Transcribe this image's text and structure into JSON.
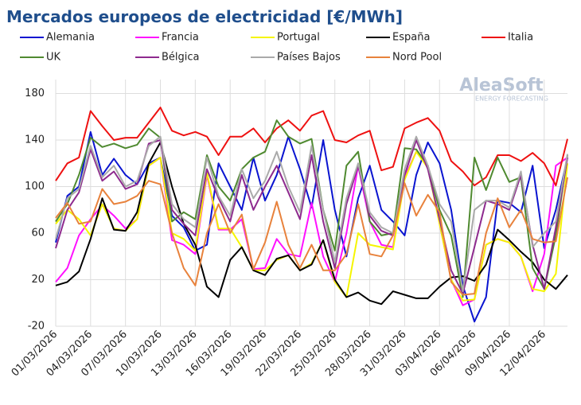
{
  "chart_data": {
    "type": "line",
    "title": "Mercados europeos de electricidad [€/MWh]",
    "watermark": {
      "brand": "AleaSoft",
      "tagline": "ENERGY FORECASTING"
    },
    "categories": [
      "01/03/2026",
      null,
      null,
      "04/03/2026",
      null,
      null,
      "07/03/2026",
      null,
      null,
      "10/03/2026",
      null,
      null,
      "13/03/2026",
      null,
      null,
      "16/03/2026",
      null,
      null,
      "19/03/2026",
      null,
      null,
      "22/03/2026",
      null,
      null,
      "25/03/2026",
      null,
      null,
      "28/03/2026",
      null,
      null,
      "31/03/2026",
      null,
      null,
      "03/04/2026",
      null,
      null,
      "06/04/2026",
      null,
      null,
      "09/04/2026",
      null,
      null,
      "12/04/2026",
      null,
      null
    ],
    "ylim": [
      -20,
      192
    ],
    "yticks": [
      -20,
      20,
      60,
      100,
      140,
      180
    ],
    "grid": true,
    "legend": "top",
    "series": [
      {
        "name": "Alemania",
        "color": "#0a14d0",
        "values": [
          52,
          92,
          100,
          147,
          110,
          124,
          110,
          102,
          120,
          125,
          75,
          65,
          45,
          50,
          120,
          100,
          80,
          125,
          88,
          110,
          143,
          115,
          82,
          140,
          80,
          40,
          90,
          118,
          80,
          70,
          58,
          110,
          138,
          120,
          80,
          15,
          -16,
          5,
          88,
          86,
          78,
          118,
          47,
          80,
          125
        ]
      },
      {
        "name": "Francia",
        "color": "#ff10ff",
        "values": [
          18,
          30,
          58,
          72,
          84,
          75,
          64,
          72,
          118,
          125,
          54,
          50,
          42,
          110,
          63,
          63,
          72,
          29,
          30,
          55,
          42,
          40,
          86,
          40,
          18,
          60,
          118,
          70,
          50,
          48,
          108,
          130,
          118,
          68,
          20,
          -2,
          3,
          50,
          55,
          52,
          40,
          10,
          42,
          118,
          125
        ]
      },
      {
        "name": "Portugal",
        "color": "#f5f500",
        "values": [
          68,
          80,
          72,
          58,
          85,
          64,
          62,
          72,
          118,
          125,
          60,
          55,
          45,
          112,
          64,
          64,
          48,
          28,
          28,
          37,
          41,
          28,
          34,
          54,
          18,
          5,
          60,
          50,
          48,
          46,
          106,
          130,
          116,
          68,
          20,
          2,
          3,
          50,
          55,
          52,
          40,
          12,
          10,
          25,
          120
        ]
      },
      {
        "name": "España",
        "color": "#000000",
        "values": [
          15,
          18,
          27,
          55,
          90,
          63,
          62,
          78,
          120,
          138,
          100,
          68,
          50,
          14,
          5,
          37,
          48,
          28,
          24,
          38,
          41,
          28,
          33,
          54,
          20,
          5,
          9,
          2,
          -1,
          10,
          7,
          4,
          4,
          14,
          22,
          23,
          19,
          33,
          63,
          54,
          44,
          35,
          20,
          12,
          24
        ]
      },
      {
        "name": "Italia",
        "color": "#ee1111",
        "values": [
          105,
          120,
          125,
          165,
          152,
          140,
          142,
          142,
          155,
          168,
          148,
          144,
          147,
          143,
          127,
          143,
          143,
          150,
          138,
          150,
          157,
          148,
          161,
          165,
          140,
          138,
          144,
          148,
          114,
          117,
          150,
          155,
          159,
          148,
          122,
          113,
          101,
          108,
          127,
          127,
          122,
          129,
          120,
          101,
          141
        ]
      },
      {
        "name": "UK",
        "color": "#4f8a30",
        "values": [
          70,
          85,
          110,
          142,
          134,
          137,
          133,
          136,
          150,
          142,
          70,
          78,
          72,
          127,
          100,
          88,
          115,
          125,
          130,
          157,
          143,
          137,
          141,
          80,
          45,
          118,
          130,
          70,
          58,
          60,
          133,
          132,
          118,
          80,
          58,
          5,
          125,
          97,
          125,
          104,
          108,
          30,
          12,
          58,
          127
        ]
      },
      {
        "name": "Bélgica",
        "color": "#8e2a8e",
        "values": [
          47,
          80,
          95,
          132,
          105,
          113,
          98,
          102,
          137,
          140,
          80,
          68,
          58,
          115,
          90,
          70,
          110,
          80,
          100,
          118,
          95,
          72,
          127,
          70,
          30,
          85,
          118,
          75,
          62,
          58,
          110,
          140,
          115,
          72,
          28,
          8,
          48,
          88,
          85,
          80,
          110,
          50,
          12,
          65,
          125
        ]
      },
      {
        "name": "Países Bajos",
        "color": "#aaaaaa",
        "values": [
          55,
          90,
          98,
          135,
          108,
          118,
          100,
          105,
          135,
          143,
          85,
          72,
          65,
          125,
          92,
          75,
          115,
          90,
          105,
          130,
          100,
          78,
          135,
          80,
          35,
          90,
          120,
          78,
          65,
          60,
          115,
          143,
          118,
          85,
          70,
          10,
          80,
          88,
          88,
          82,
          113,
          48,
          60,
          70,
          128
        ]
      },
      {
        "name": "Nord Pool",
        "color": "#e8823c",
        "values": [
          73,
          86,
          68,
          70,
          98,
          85,
          87,
          92,
          105,
          102,
          60,
          30,
          15,
          60,
          85,
          60,
          76,
          29,
          52,
          87,
          50,
          30,
          50,
          28,
          28,
          42,
          85,
          42,
          40,
          58,
          103,
          75,
          93,
          78,
          18,
          7,
          8,
          60,
          90,
          65,
          80,
          55,
          52,
          53,
          108
        ]
      }
    ]
  }
}
